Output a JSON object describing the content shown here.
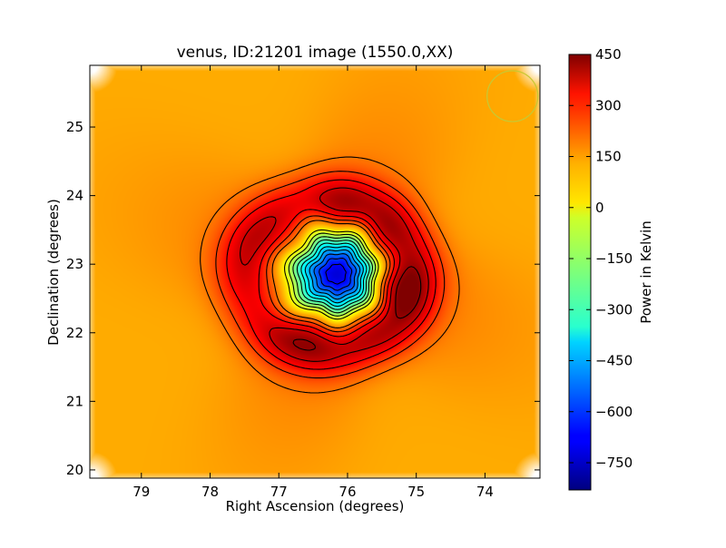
{
  "chart_data": {
    "type": "heatmap",
    "title": "venus, ID:21201 image (1550.0,XX)",
    "xlabel": "Right Ascension (degrees)",
    "ylabel": "Declination (degrees)",
    "xlim": [
      79.75,
      73.2
    ],
    "ylim": [
      19.88,
      25.9
    ],
    "x_ticks": [
      79,
      78,
      77,
      76,
      75,
      74
    ],
    "y_ticks": [
      20,
      21,
      22,
      23,
      24,
      25
    ],
    "x_tick_labels": [
      "79",
      "78",
      "77",
      "76",
      "75",
      "74"
    ],
    "y_tick_labels": [
      "20",
      "21",
      "22",
      "23",
      "24",
      "25"
    ],
    "colorbar": {
      "label": "Power in Kelvin",
      "range": [
        -830,
        450
      ],
      "ticks": [
        450,
        300,
        150,
        0,
        -150,
        -300,
        -450,
        -600,
        -750
      ],
      "tick_labels": [
        "450",
        "300",
        "150",
        "0",
        "−150",
        "−300",
        "−450",
        "−600",
        "−750"
      ],
      "colormap": "jet"
    },
    "background_value": 75,
    "source": {
      "ra": 76.15,
      "dec": 22.85,
      "min_value": -830
    },
    "ring": {
      "ra": 76.3,
      "dec": 22.85,
      "max_value": 430
    },
    "beam_marker": {
      "ra": 73.6,
      "dec": 25.45,
      "color": "#c8c832"
    },
    "contours": {
      "positive_style": "solid",
      "negative_style": "dashed",
      "color": "#000000"
    }
  }
}
